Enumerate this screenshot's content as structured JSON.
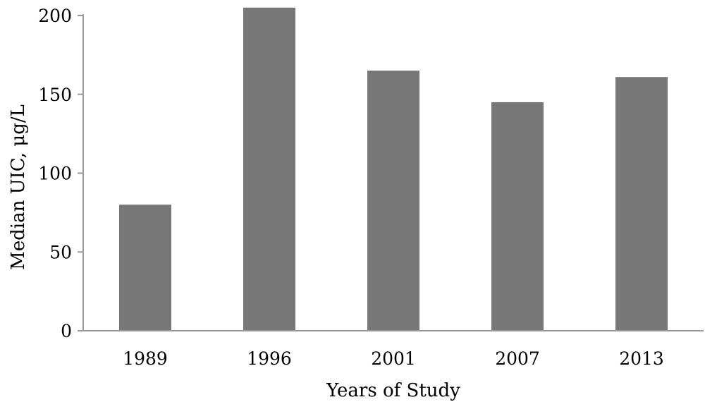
{
  "chart_data": {
    "type": "bar",
    "title": "",
    "xlabel": "Years of Study",
    "ylabel": "Median UIC, μg/L",
    "categories": [
      "1989",
      "1996",
      "2001",
      "2007",
      "2013"
    ],
    "values": [
      80,
      205,
      165,
      145,
      161
    ],
    "ylim": [
      0,
      200
    ],
    "yticks": [
      0,
      50,
      100,
      150,
      200
    ],
    "grid": false,
    "legend": "none",
    "colors": {
      "bar": "#777777",
      "axis": "#9a9a9a",
      "text": "#000000"
    }
  }
}
